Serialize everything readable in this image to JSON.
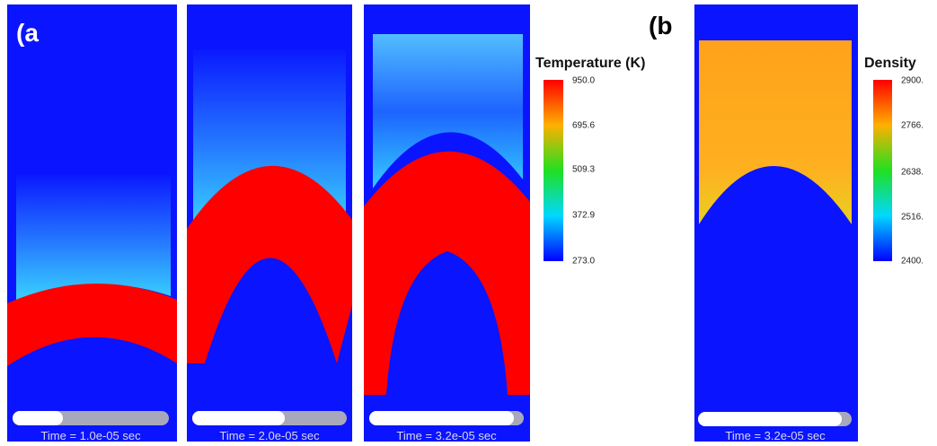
{
  "figure": {
    "panel_a_label": "(a",
    "panel_b_label": "(b",
    "panels": [
      {
        "time_label": "Time = 1.0e-05  sec"
      },
      {
        "time_label": "Time = 2.0e-05  sec"
      },
      {
        "time_label": "Time = 3.2e-05  sec"
      },
      {
        "time_label": "Time = 3.2e-05  sec"
      }
    ],
    "colorbars": [
      {
        "title": "Temperature (K)",
        "ticks": [
          "950.0",
          "695.6",
          "509.3",
          "372.9",
          "273.0"
        ]
      },
      {
        "title": "Density",
        "ticks": [
          "2900.",
          "2766.",
          "2638.",
          "2516.",
          "2400."
        ]
      }
    ]
  }
}
